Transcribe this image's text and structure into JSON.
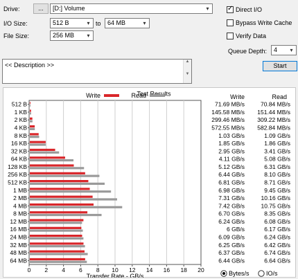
{
  "top": {
    "drive_label": "Drive:",
    "browse_label": "...",
    "drive_value": "[D:] Volume",
    "io_size_label": "I/O Size:",
    "io_from": "512 B",
    "to_label": "to",
    "io_to": "64 MB",
    "file_size_label": "File Size:",
    "file_size": "256 MB",
    "direct_io_label": "Direct I/O",
    "bypass_label": "Bypass Write Cache",
    "verify_label": "Verify Data",
    "queue_label": "Queue Depth:",
    "queue_value": "4",
    "description": "<< Description >>",
    "start_label": "Start",
    "direct_io_checked": true,
    "bypass_checked": false,
    "verify_checked": false
  },
  "results": {
    "title": "Test Results",
    "write_legend": "Write",
    "read_legend": "Read",
    "write_header": "Write",
    "read_header": "Read",
    "write_color": "#d9262a",
    "read_color": "#9a9a9a",
    "rows": [
      {
        "size": "512 B",
        "write": "71.69 MB/s",
        "read": "70.84 MB/s"
      },
      {
        "size": "1 KB",
        "write": "145.58 MB/s",
        "read": "151.44 MB/s"
      },
      {
        "size": "2 KB",
        "write": "299.46 MB/s",
        "read": "309.22 MB/s"
      },
      {
        "size": "4 KB",
        "write": "572.55 MB/s",
        "read": "582.84 MB/s"
      },
      {
        "size": "8 KB",
        "write": "1.03 GB/s",
        "read": "1.09 GB/s"
      },
      {
        "size": "16 KB",
        "write": "1.85 GB/s",
        "read": "1.86 GB/s"
      },
      {
        "size": "32 KB",
        "write": "2.95 GB/s",
        "read": "3.41 GB/s"
      },
      {
        "size": "64 KB",
        "write": "4.11 GB/s",
        "read": "5.08 GB/s"
      },
      {
        "size": "128 KB",
        "write": "5.12 GB/s",
        "read": "6.31 GB/s"
      },
      {
        "size": "256 KB",
        "write": "6.44 GB/s",
        "read": "8.10 GB/s"
      },
      {
        "size": "512 KB",
        "write": "6.81 GB/s",
        "read": "8.71 GB/s"
      },
      {
        "size": "1 MB",
        "write": "6.98 GB/s",
        "read": "9.45 GB/s"
      },
      {
        "size": "2 MB",
        "write": "7.31 GB/s",
        "read": "10.16 GB/s"
      },
      {
        "size": "4 MB",
        "write": "7.42 GB/s",
        "read": "10.75 GB/s"
      },
      {
        "size": "8 MB",
        "write": "6.70 GB/s",
        "read": "8.35 GB/s"
      },
      {
        "size": "12 MB",
        "write": "6.24 GB/s",
        "read": "6.08 GB/s"
      },
      {
        "size": "16 MB",
        "write": "6 GB/s",
        "read": "6.17 GB/s"
      },
      {
        "size": "24 MB",
        "write": "6.09 GB/s",
        "read": "6.24 GB/s"
      },
      {
        "size": "32 MB",
        "write": "6.25 GB/s",
        "read": "6.42 GB/s"
      },
      {
        "size": "48 MB",
        "write": "6.37 GB/s",
        "read": "6.74 GB/s"
      },
      {
        "size": "64 MB",
        "write": "6.44 GB/s",
        "read": "6.64 GB/s"
      }
    ],
    "xlabel": "Transfer Rate - GB/s",
    "bytes_label": "Bytes/s",
    "io_label": "IO/s",
    "bytes_selected": true
  },
  "chart_data": {
    "type": "bar",
    "title": "Test Results",
    "xlabel": "Transfer Rate - GB/s",
    "xlim": [
      0,
      20
    ],
    "x_ticks": [
      0,
      2,
      4,
      6,
      8,
      10,
      12,
      14,
      16,
      18,
      20
    ],
    "categories": [
      "512 B",
      "1 KB",
      "2 KB",
      "4 KB",
      "8 KB",
      "16 KB",
      "32 KB",
      "64 KB",
      "128 KB",
      "256 KB",
      "512 KB",
      "1 MB",
      "2 MB",
      "4 MB",
      "8 MB",
      "12 MB",
      "16 MB",
      "24 MB",
      "32 MB",
      "48 MB",
      "64 MB"
    ],
    "series": [
      {
        "name": "Write",
        "values": [
          0.072,
          0.146,
          0.299,
          0.573,
          1.03,
          1.85,
          2.95,
          4.11,
          5.12,
          6.44,
          6.81,
          6.98,
          7.31,
          7.42,
          6.7,
          6.24,
          6.0,
          6.09,
          6.25,
          6.37,
          6.44
        ]
      },
      {
        "name": "Read",
        "values": [
          0.071,
          0.151,
          0.309,
          0.583,
          1.09,
          1.86,
          3.41,
          5.08,
          6.31,
          8.1,
          8.71,
          9.45,
          10.16,
          10.75,
          8.35,
          6.08,
          6.17,
          6.24,
          6.42,
          6.74,
          6.64
        ]
      }
    ],
    "grid": true,
    "legend": "top"
  }
}
